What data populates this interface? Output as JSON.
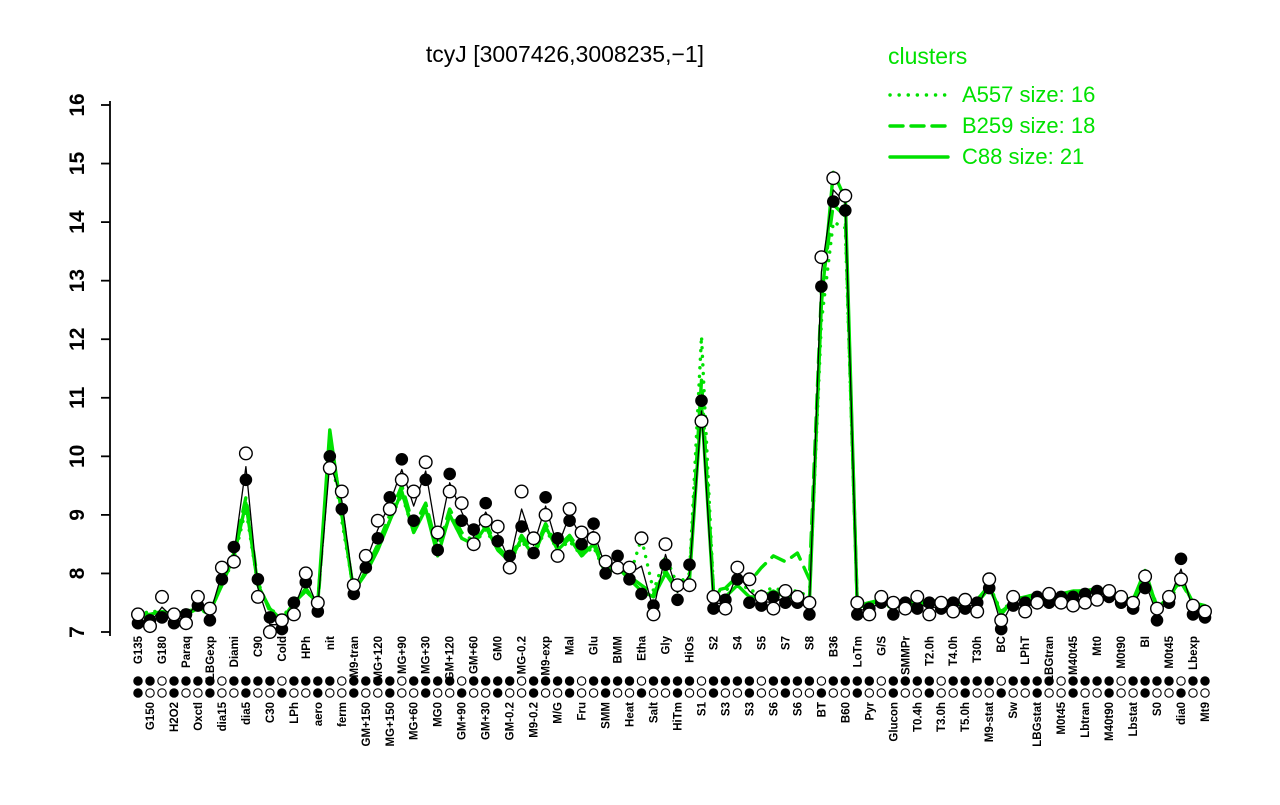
{
  "colors": {
    "cluster": "#00e100",
    "points": "#000000",
    "background": "#ffffff"
  },
  "legend": {
    "header": "clusters",
    "entries": [
      {
        "name": "A557",
        "label": "A557 size: 16",
        "style": "dotted",
        "size": 16
      },
      {
        "name": "B259",
        "label": "B259 size: 18",
        "style": "dashed",
        "size": 18
      },
      {
        "name": "C88",
        "label": "C88 size: 21",
        "style": "solid",
        "size": 21
      }
    ]
  },
  "chart_data": {
    "type": "line",
    "title": "tcyJ [3007426,3008235,−1]",
    "xlabel": "",
    "ylabel": "",
    "ylim": [
      7,
      16
    ],
    "yticks": [
      7,
      8,
      9,
      10,
      11,
      12,
      13,
      14,
      15,
      16
    ],
    "grid": false,
    "legend_position": "top-right",
    "rug_rows": 2,
    "categories": [
      "G135",
      "G150",
      "G180",
      "H2O2",
      "Paraq",
      "Oxctl",
      "LBGexp",
      "dia15",
      "Diami",
      "dia5",
      "C90",
      "C30",
      "Cold",
      "LPh",
      "HPh",
      "aero",
      "nit",
      "ferm",
      "M9-tran",
      "GM+150",
      "MG+120",
      "MG+150",
      "MG+90",
      "MG+60",
      "MG+30",
      "MG0",
      "GM+120",
      "GM+90",
      "GM+60",
      "GM+30",
      "GM0",
      "GM-0.2",
      "MG-0.2",
      "M9-0.2",
      "M9-exp",
      "M/G",
      "Mal",
      "Fru",
      "Glu",
      "SMM",
      "BMM",
      "Heat",
      "Etha",
      "Salt",
      "Gly",
      "HiTm",
      "HiOs",
      "S1",
      "S2",
      "S3",
      "S4",
      "S3",
      "S5",
      "S6",
      "S7",
      "S6",
      "S8",
      "BT",
      "B36",
      "B60",
      "LoTm",
      "Pyr",
      "G/S",
      "Glucon",
      "SMMPr",
      "T0.4h",
      "T2.0h",
      "T3.0h",
      "T4.0h",
      "T5.0h",
      "T30h",
      "M9-stat",
      "BC",
      "Sw",
      "LPhT",
      "LBGstat",
      "LBGtran",
      "M0t45",
      "M40t45",
      "Lbtran",
      "Mt0",
      "M40t90",
      "M0t90",
      "Lbstat",
      "BI",
      "S0",
      "M0t45",
      "dia0",
      "Lbexp",
      "Mt9"
    ],
    "series": [
      {
        "name": "expression-filled",
        "color": "#000000",
        "marker": "filled-circle",
        "values": [
          7.15,
          7.2,
          7.25,
          7.15,
          7.3,
          7.45,
          7.2,
          7.9,
          8.45,
          9.6,
          7.9,
          7.25,
          7.05,
          7.5,
          7.85,
          7.35,
          10.0,
          9.1,
          7.65,
          8.1,
          8.6,
          9.3,
          9.95,
          8.9,
          9.6,
          8.4,
          9.7,
          8.9,
          8.75,
          9.2,
          8.55,
          8.3,
          8.8,
          8.35,
          9.3,
          8.6,
          8.9,
          8.5,
          8.85,
          8.0,
          8.3,
          7.9,
          7.65,
          7.45,
          8.15,
          7.55,
          8.15,
          10.95,
          7.4,
          7.55,
          7.9,
          7.5,
          7.45,
          7.6,
          7.5,
          7.5,
          7.3,
          12.9,
          14.35,
          14.2,
          7.3,
          7.4,
          7.5,
          7.3,
          7.5,
          7.4,
          7.5,
          7.4,
          7.5,
          7.4,
          7.5,
          7.75,
          7.05,
          7.45,
          7.5,
          7.6,
          7.5,
          7.6,
          7.6,
          7.65,
          7.7,
          7.6,
          7.5,
          7.4,
          7.75,
          7.2,
          7.5,
          8.25,
          7.3,
          7.25
        ]
      },
      {
        "name": "expression-open",
        "color": "#000000",
        "marker": "open-circle",
        "values": [
          7.3,
          7.1,
          7.6,
          7.3,
          7.15,
          7.6,
          7.4,
          8.1,
          8.2,
          10.05,
          7.6,
          7.0,
          7.2,
          7.3,
          8.0,
          7.5,
          9.8,
          9.4,
          7.8,
          8.3,
          8.9,
          9.1,
          9.6,
          9.4,
          9.9,
          8.7,
          9.4,
          9.2,
          8.5,
          8.9,
          8.8,
          8.1,
          9.4,
          8.6,
          9.0,
          8.3,
          9.1,
          8.7,
          8.6,
          8.2,
          8.1,
          8.1,
          8.6,
          7.3,
          8.5,
          7.8,
          7.8,
          10.6,
          7.6,
          7.4,
          8.1,
          7.9,
          7.6,
          7.4,
          7.7,
          7.6,
          7.5,
          13.4,
          14.75,
          14.45,
          7.5,
          7.3,
          7.6,
          7.5,
          7.4,
          7.6,
          7.3,
          7.5,
          7.35,
          7.55,
          7.35,
          7.9,
          7.2,
          7.6,
          7.35,
          7.5,
          7.65,
          7.5,
          7.45,
          7.5,
          7.55,
          7.7,
          7.6,
          7.5,
          7.95,
          7.4,
          7.6,
          7.9,
          7.45,
          7.35
        ]
      },
      {
        "name": "A557",
        "color": "#00e100",
        "line": "dotted",
        "values": [
          7.3,
          7.35,
          7.35,
          7.3,
          7.35,
          7.45,
          7.35,
          7.8,
          8.25,
          9.1,
          7.8,
          7.4,
          7.25,
          7.5,
          7.7,
          7.5,
          10.2,
          8.9,
          7.7,
          8.0,
          8.45,
          8.9,
          9.35,
          8.7,
          9.1,
          8.35,
          9.0,
          8.6,
          8.5,
          8.75,
          8.4,
          8.2,
          8.55,
          8.3,
          8.75,
          8.4,
          8.55,
          8.3,
          8.45,
          8.0,
          8.1,
          7.95,
          8.6,
          7.7,
          8.3,
          7.8,
          8.0,
          12.05,
          7.7,
          7.7,
          7.9,
          7.7,
          7.7,
          7.75,
          7.7,
          7.7,
          7.6,
          12.3,
          14.0,
          13.9,
          7.45,
          7.5,
          7.55,
          7.45,
          7.55,
          7.5,
          7.55,
          7.5,
          7.55,
          7.5,
          7.55,
          7.8,
          7.35,
          7.55,
          7.6,
          7.65,
          7.6,
          7.65,
          7.7,
          7.7,
          7.7,
          7.7,
          7.6,
          7.55,
          8.0,
          7.45,
          7.6,
          7.9,
          7.5,
          7.45
        ]
      },
      {
        "name": "B259",
        "color": "#00e100",
        "line": "dashed",
        "values": [
          7.25,
          7.3,
          7.3,
          7.25,
          7.3,
          7.4,
          7.3,
          7.85,
          8.35,
          9.3,
          7.85,
          7.35,
          7.15,
          7.45,
          7.75,
          7.45,
          10.3,
          9.1,
          7.65,
          8.05,
          8.5,
          9.0,
          9.5,
          8.8,
          9.2,
          8.4,
          9.1,
          8.7,
          8.55,
          8.85,
          8.45,
          8.25,
          8.65,
          8.35,
          8.85,
          8.45,
          8.65,
          8.35,
          8.55,
          8.05,
          8.15,
          7.95,
          7.8,
          7.65,
          8.05,
          7.7,
          7.95,
          11.3,
          7.7,
          7.75,
          7.95,
          7.85,
          8.1,
          8.3,
          8.2,
          8.35,
          7.9,
          12.8,
          14.3,
          14.1,
          7.45,
          7.5,
          7.5,
          7.4,
          7.5,
          7.45,
          7.5,
          7.45,
          7.5,
          7.45,
          7.5,
          7.75,
          7.35,
          7.5,
          7.55,
          7.6,
          7.55,
          7.6,
          7.65,
          7.65,
          7.7,
          7.65,
          7.55,
          7.5,
          7.95,
          7.45,
          7.55,
          7.85,
          7.5,
          7.4
        ]
      },
      {
        "name": "C88",
        "color": "#00e100",
        "line": "solid",
        "values": [
          7.3,
          7.3,
          7.35,
          7.3,
          7.35,
          7.4,
          7.35,
          7.8,
          8.3,
          9.2,
          7.8,
          7.4,
          7.2,
          7.5,
          7.7,
          7.5,
          10.45,
          9.0,
          7.7,
          8.0,
          8.4,
          8.9,
          9.4,
          8.7,
          9.1,
          8.3,
          9.0,
          8.6,
          8.5,
          8.8,
          8.4,
          8.2,
          8.6,
          8.3,
          8.8,
          8.4,
          8.6,
          8.3,
          8.5,
          8.0,
          8.1,
          7.9,
          7.7,
          7.6,
          8.0,
          7.7,
          7.9,
          10.9,
          7.6,
          7.6,
          7.8,
          7.6,
          7.6,
          7.7,
          7.6,
          7.6,
          7.5,
          12.6,
          14.85,
          14.4,
          7.4,
          7.5,
          7.55,
          7.45,
          7.55,
          7.5,
          7.55,
          7.5,
          7.55,
          7.5,
          7.55,
          7.8,
          7.3,
          7.55,
          7.6,
          7.65,
          7.6,
          7.65,
          7.7,
          7.7,
          7.75,
          7.7,
          7.6,
          7.55,
          8.05,
          7.4,
          7.6,
          7.9,
          7.5,
          7.45
        ]
      }
    ]
  }
}
